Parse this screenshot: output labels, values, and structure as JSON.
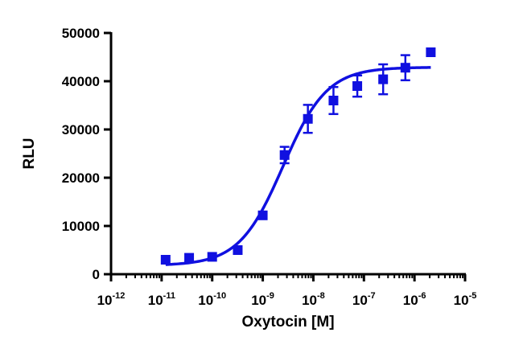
{
  "chart_data": {
    "type": "scatter",
    "title": "",
    "xlabel": "Oxytocin [M]",
    "ylabel": "RLU",
    "xscale": "log",
    "xlim": [
      1e-12,
      1e-05
    ],
    "ylim": [
      0,
      50000
    ],
    "grid": false,
    "legend": "none",
    "x_tick_labels": [
      {
        "value": 1e-12,
        "base": "10",
        "exp": "-12"
      },
      {
        "value": 1e-11,
        "base": "10",
        "exp": "-11"
      },
      {
        "value": 1e-10,
        "base": "10",
        "exp": "-10"
      },
      {
        "value": 1e-09,
        "base": "10",
        "exp": "-9"
      },
      {
        "value": 1e-08,
        "base": "10",
        "exp": "-8"
      },
      {
        "value": 1e-07,
        "base": "10",
        "exp": "-7"
      },
      {
        "value": 1e-06,
        "base": "10",
        "exp": "-6"
      },
      {
        "value": 1e-05,
        "base": "10",
        "exp": "-5"
      }
    ],
    "y_ticks": [
      0,
      10000,
      20000,
      30000,
      40000,
      50000
    ],
    "y_tick_labels": [
      "0",
      "10000",
      "20000",
      "30000",
      "40000",
      "50000"
    ],
    "color": "#1010e0",
    "series": [
      {
        "marker": "square",
        "points": [
          {
            "x": 1.2e-11,
            "y": 3000,
            "err": 0
          },
          {
            "x": 3.5e-11,
            "y": 3400,
            "err": 0
          },
          {
            "x": 1e-10,
            "y": 3600,
            "err": 0
          },
          {
            "x": 3.2e-10,
            "y": 5000,
            "err": 0
          },
          {
            "x": 1e-09,
            "y": 12200,
            "err": 0
          },
          {
            "x": 2.7e-09,
            "y": 24700,
            "err": 1700
          },
          {
            "x": 7.8e-09,
            "y": 32200,
            "err": 2900
          },
          {
            "x": 2.5e-08,
            "y": 36000,
            "err": 2800
          },
          {
            "x": 7.4e-08,
            "y": 39000,
            "err": 2200
          },
          {
            "x": 2.4e-07,
            "y": 40400,
            "err": 3100
          },
          {
            "x": 6.6e-07,
            "y": 42800,
            "err": 2600
          },
          {
            "x": 2.1e-06,
            "y": 46000,
            "err": 0
          }
        ],
        "fit": {
          "model": "sigmoidal dose-response",
          "bottom": 1800,
          "top": 42900,
          "log_ec50": -8.6,
          "hill": 1.0,
          "x_from": 1.2e-11,
          "x_to": 2.1e-06
        }
      }
    ]
  }
}
